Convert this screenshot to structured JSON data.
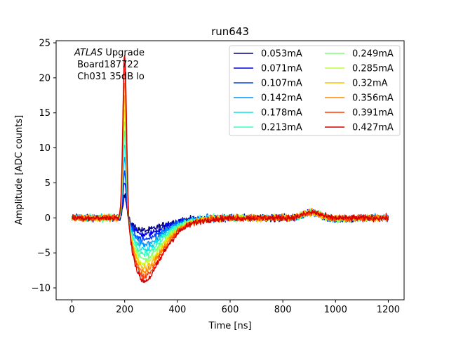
{
  "chart_data": {
    "type": "line",
    "title": "run643",
    "xlabel": "Time [ns]",
    "ylabel": "Amplitude [ADC counts]",
    "xlim": [
      -60,
      1260
    ],
    "ylim": [
      -11.7,
      25.3
    ],
    "xticks": [
      0,
      200,
      400,
      600,
      800,
      1000,
      1200
    ],
    "yticks": [
      -10,
      -5,
      0,
      5,
      10,
      15,
      20,
      25
    ],
    "ytick_labels": [
      "−10",
      "−5",
      "0",
      "5",
      "10",
      "15",
      "20",
      "25"
    ],
    "grid": false,
    "legend_position": "top-right",
    "legend_columns": 2,
    "annotation": {
      "italic_part": "ATLAS",
      "line1_rest": " Upgrade",
      "line2": " Board187722",
      "line3": " Ch031 35dB lo"
    },
    "series": [
      {
        "name": "0.053mA",
        "color": "#00007f",
        "peak": 3.2,
        "undershoot": -1.8,
        "noise": 0.5
      },
      {
        "name": "0.071mA",
        "color": "#0000e3",
        "peak": 5.0,
        "undershoot": -2.4,
        "noise": 0.5
      },
      {
        "name": "0.107mA",
        "color": "#0040ff",
        "peak": 6.5,
        "undershoot": -3.1,
        "noise": 0.5
      },
      {
        "name": "0.142mA",
        "color": "#0094ff",
        "peak": 8.5,
        "undershoot": -3.8,
        "noise": 0.5
      },
      {
        "name": "0.178mA",
        "color": "#0ee0e8",
        "peak": 10.5,
        "undershoot": -4.5,
        "noise": 0.5
      },
      {
        "name": "0.213mA",
        "color": "#39ffbe",
        "peak": 12.0,
        "undershoot": -5.2,
        "noise": 0.5
      },
      {
        "name": "0.249mA",
        "color": "#7dff7a",
        "peak": 14.0,
        "undershoot": -5.9,
        "noise": 0.5
      },
      {
        "name": "0.285mA",
        "color": "#beff39",
        "peak": 15.5,
        "undershoot": -6.5,
        "noise": 0.5
      },
      {
        "name": "0.32mA",
        "color": "#ffc400",
        "peak": 17.5,
        "undershoot": -7.1,
        "noise": 0.5
      },
      {
        "name": "0.356mA",
        "color": "#ff8600",
        "peak": 19.5,
        "undershoot": -7.7,
        "noise": 0.5
      },
      {
        "name": "0.391mA",
        "color": "#ff3b00",
        "peak": 21.5,
        "undershoot": -8.3,
        "noise": 0.5
      },
      {
        "name": "0.427mA",
        "color": "#d40000",
        "peak": 23.5,
        "undershoot": -9.0,
        "noise": 0.5
      }
    ]
  }
}
